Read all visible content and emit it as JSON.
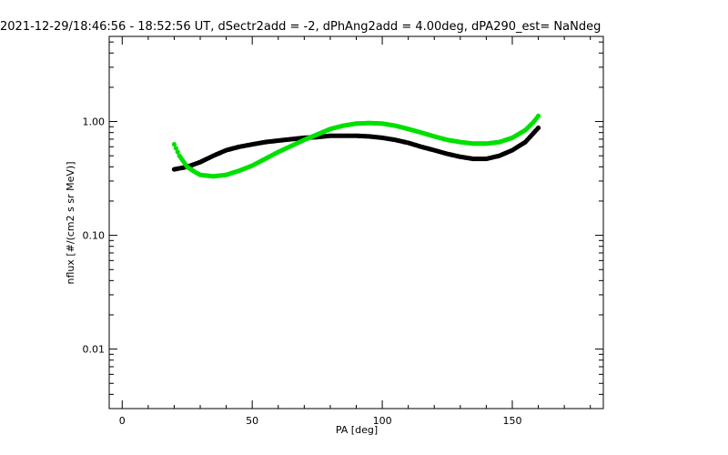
{
  "chart_data": {
    "type": "scatter",
    "title": "2021-12-29/18:46:56 - 18:52:56 UT, dSectr2add = -2, dPhAng2add = 4.00deg, dPA290_est=   NaNdeg",
    "xlabel": "PA [deg]",
    "ylabel": "nflux [#/(cm2 s sr MeV)]",
    "xlim": [
      -5,
      185
    ],
    "ylim": [
      0.003,
      5.6
    ],
    "yscale": "log",
    "grid": false,
    "x_ticks": [
      0,
      50,
      100,
      150
    ],
    "x_tick_labels": [
      "0",
      "50",
      "100",
      "150"
    ],
    "y_ticks": [
      0.01,
      0.1,
      1.0
    ],
    "y_tick_labels": [
      "0.01",
      "0.10",
      "1.00"
    ],
    "series": [
      {
        "color": "#000000",
        "x": [
          20,
          25,
          30,
          35,
          40,
          45,
          50,
          55,
          60,
          65,
          70,
          75,
          80,
          85,
          90,
          95,
          100,
          105,
          110,
          115,
          120,
          125,
          130,
          135,
          140,
          145,
          150,
          155,
          160
        ],
        "values": [
          0.38,
          0.4,
          0.44,
          0.5,
          0.56,
          0.6,
          0.63,
          0.66,
          0.68,
          0.7,
          0.72,
          0.73,
          0.75,
          0.75,
          0.75,
          0.74,
          0.72,
          0.69,
          0.65,
          0.6,
          0.56,
          0.52,
          0.49,
          0.47,
          0.47,
          0.5,
          0.56,
          0.66,
          0.88
        ]
      },
      {
        "color": "#00e000",
        "x": [
          20,
          22,
          25,
          28,
          30,
          35,
          40,
          45,
          50,
          55,
          60,
          65,
          70,
          75,
          80,
          85,
          90,
          95,
          100,
          105,
          110,
          115,
          120,
          125,
          130,
          135,
          140,
          145,
          150,
          155,
          158,
          160
        ],
        "values": [
          0.63,
          0.5,
          0.4,
          0.36,
          0.34,
          0.33,
          0.34,
          0.37,
          0.41,
          0.47,
          0.54,
          0.61,
          0.69,
          0.77,
          0.86,
          0.92,
          0.96,
          0.97,
          0.96,
          0.92,
          0.86,
          0.8,
          0.74,
          0.69,
          0.66,
          0.64,
          0.64,
          0.66,
          0.72,
          0.84,
          0.98,
          1.12
        ]
      }
    ]
  }
}
